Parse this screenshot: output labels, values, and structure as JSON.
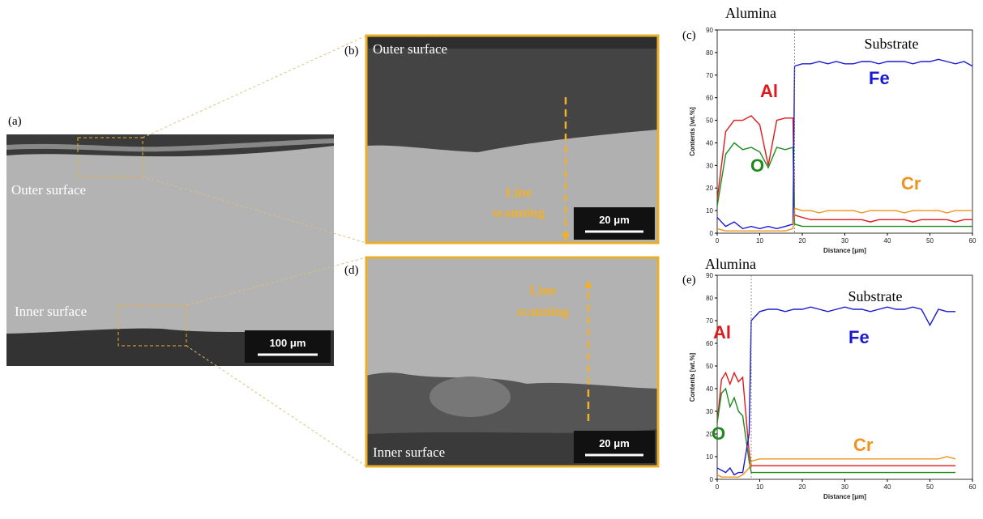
{
  "figure": {
    "panel_a": {
      "label": "(a)",
      "outer": "Outer surface",
      "inner": "Inner surface",
      "scale": "100 μm"
    },
    "panel_b": {
      "label": "(b)",
      "surface": "Outer surface",
      "scan_1": "Line",
      "scan_2": "scanning",
      "scale": "20 μm"
    },
    "panel_d": {
      "label": "(d)",
      "surface": "Inner surface",
      "scan_1": "Line",
      "scan_2": "scanning",
      "scale": "20 μm"
    }
  },
  "chart_data": [
    {
      "type": "line",
      "panel_label": "(c)",
      "title": "Alumina",
      "annotation": "Substrate",
      "x_label": "Distance [μm]",
      "y_label": "Contents [wt.%]",
      "xlim": [
        0,
        60
      ],
      "ylim": [
        0,
        90
      ],
      "xticks": [
        0,
        10,
        20,
        30,
        40,
        50,
        60
      ],
      "yticks": [
        0,
        10,
        20,
        30,
        40,
        50,
        60,
        70,
        80,
        90
      ],
      "x": [
        0,
        2,
        4,
        6,
        8,
        10,
        12,
        14,
        16,
        17.8,
        18.2,
        20,
        22,
        24,
        26,
        28,
        30,
        32,
        34,
        36,
        38,
        40,
        42,
        44,
        46,
        48,
        50,
        52,
        54,
        56,
        58,
        60
      ],
      "series": [
        {
          "name": "Al",
          "color": "#e0191c",
          "values": [
            15,
            45,
            50,
            50,
            52,
            48,
            30,
            50,
            51,
            51,
            8,
            7,
            6,
            6,
            6,
            6,
            6,
            6,
            6,
            5,
            6,
            6,
            6,
            6,
            5,
            6,
            6,
            6,
            6,
            5,
            6,
            6
          ]
        },
        {
          "name": "O",
          "color": "#1e8a1e",
          "values": [
            12,
            35,
            40,
            37,
            38,
            36,
            29,
            38,
            37,
            38,
            4,
            3,
            3,
            3,
            3,
            3,
            3,
            3,
            3,
            3,
            3,
            3,
            3,
            3,
            3,
            3,
            3,
            3,
            3,
            3,
            3,
            3
          ]
        },
        {
          "name": "Fe",
          "color": "#1a1ad0",
          "values": [
            7,
            3,
            5,
            2,
            3,
            2,
            3,
            2,
            3,
            4,
            74,
            75,
            75,
            76,
            75,
            76,
            75,
            75,
            76,
            76,
            75,
            76,
            76,
            76,
            75,
            76,
            76,
            77,
            76,
            75,
            76,
            74
          ]
        },
        {
          "name": "Cr",
          "color": "#f0921e",
          "values": [
            2,
            1,
            1,
            1,
            1,
            1,
            1,
            1,
            1,
            2,
            11,
            10,
            10,
            9,
            10,
            10,
            10,
            10,
            9,
            10,
            10,
            10,
            10,
            9,
            10,
            10,
            10,
            10,
            9,
            10,
            10,
            10
          ]
        }
      ]
    },
    {
      "type": "line",
      "panel_label": "(e)",
      "title": "Alumina",
      "annotation": "Substrate",
      "x_label": "Distance [μm]",
      "y_label": "Contents [wt.%]",
      "xlim": [
        0,
        60
      ],
      "ylim": [
        0,
        90
      ],
      "xticks": [
        0,
        10,
        20,
        30,
        40,
        50,
        60
      ],
      "yticks": [
        0,
        10,
        20,
        30,
        40,
        50,
        60,
        70,
        80,
        90
      ],
      "x": [
        0,
        1,
        2,
        3,
        4,
        5,
        6,
        7.5,
        8,
        10,
        12,
        14,
        16,
        18,
        20,
        22,
        24,
        26,
        28,
        30,
        32,
        34,
        36,
        38,
        40,
        42,
        44,
        46,
        48,
        50,
        52,
        54,
        56
      ],
      "series": [
        {
          "name": "Al",
          "color": "#e0191c",
          "values": [
            25,
            44,
            47,
            42,
            47,
            43,
            45,
            12,
            6,
            6,
            6,
            6,
            6,
            6,
            6,
            6,
            6,
            6,
            6,
            6,
            6,
            6,
            6,
            6,
            6,
            6,
            6,
            6,
            6,
            6,
            6,
            6,
            6
          ]
        },
        {
          "name": "O",
          "color": "#1e8a1e",
          "values": [
            25,
            38,
            40,
            32,
            36,
            30,
            28,
            8,
            3,
            3,
            3,
            3,
            3,
            3,
            3,
            3,
            3,
            3,
            3,
            3,
            3,
            3,
            3,
            3,
            3,
            3,
            3,
            3,
            3,
            3,
            3,
            3,
            3
          ]
        },
        {
          "name": "Fe",
          "color": "#1a1ad0",
          "values": [
            5,
            4,
            3,
            5,
            2,
            3,
            3,
            20,
            70,
            74,
            75,
            75,
            74,
            75,
            75,
            76,
            75,
            74,
            75,
            76,
            75,
            75,
            74,
            75,
            76,
            75,
            75,
            76,
            75,
            68,
            75,
            74,
            74
          ]
        },
        {
          "name": "Cr",
          "color": "#f0921e",
          "values": [
            2,
            1,
            1,
            1,
            1,
            1,
            2,
            5,
            8,
            9,
            9,
            9,
            9,
            9,
            9,
            9,
            9,
            9,
            9,
            9,
            9,
            9,
            9,
            9,
            9,
            9,
            9,
            9,
            9,
            9,
            9,
            10,
            9
          ]
        }
      ]
    }
  ]
}
